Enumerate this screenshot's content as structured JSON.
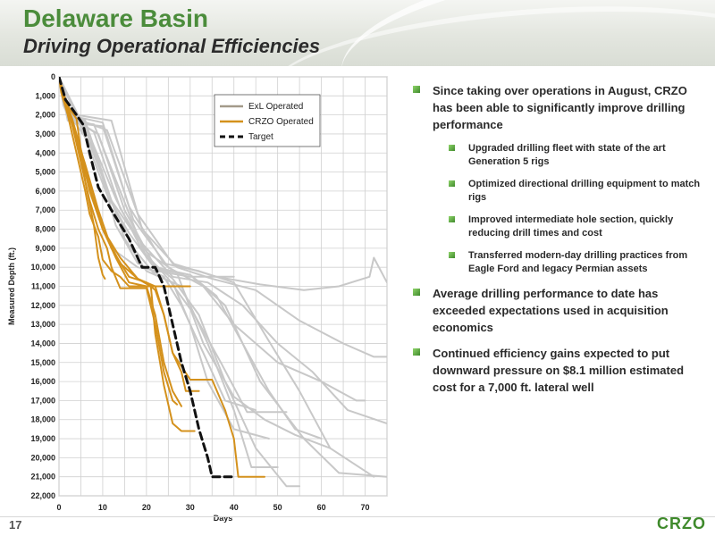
{
  "header": {
    "title": "Delaware Basin",
    "subtitle": "Driving Operational Efficiencies"
  },
  "bullets": [
    {
      "text": "Since taking over operations in August, CRZO has been able to significantly improve drilling performance",
      "level": 1
    },
    {
      "text": "Upgraded drilling fleet with state of the art Generation 5 rigs",
      "level": 2
    },
    {
      "text": "Optimized directional drilling equipment to match rigs",
      "level": 2
    },
    {
      "text": "Improved intermediate hole section, quickly reducing drill times and cost",
      "level": 2
    },
    {
      "text": "Transferred modern-day drilling practices from Eagle Ford and legacy Permian assets",
      "level": 2
    },
    {
      "text": "Average drilling performance to date has exceeded expectations used in acquisition economics",
      "level": 1
    },
    {
      "text": "Continued efficiency gains expected to put downward pressure on $8.1 million estimated cost for a 7,000 ft. lateral well",
      "level": 1
    }
  ],
  "footer": {
    "page_number": "17",
    "logo": "CRZO"
  },
  "chart_data": {
    "type": "line",
    "xlabel": "Days",
    "ylabel": "Measured Depth (ft.)",
    "xlim": [
      0,
      75
    ],
    "ylim": [
      0,
      22000
    ],
    "y_inverted": true,
    "grid": true,
    "legend_position": "top-right",
    "x_ticks": [
      0,
      10,
      20,
      30,
      40,
      50,
      60,
      70
    ],
    "y_ticks": [
      0,
      1000,
      2000,
      3000,
      4000,
      5000,
      6000,
      7000,
      8000,
      9000,
      10000,
      11000,
      12000,
      13000,
      14000,
      15000,
      16000,
      17000,
      18000,
      19000,
      20000,
      21000,
      22000
    ],
    "y_tick_labels": [
      "0",
      "1,000",
      "2,000",
      "3,000",
      "4,000",
      "5,000",
      "6,000",
      "7,000",
      "8,000",
      "9,000",
      "10,000",
      "11,000",
      "12,000",
      "13,000",
      "14,000",
      "15,000",
      "16,000",
      "17,000",
      "18,000",
      "19,000",
      "20,000",
      "21,000",
      "22,000"
    ],
    "colors": {
      "exl": "#c8c8c8",
      "exl_legend": "#a39a8a",
      "crzo": "#d4911c",
      "target": "#111111"
    },
    "legend": [
      {
        "name": "ExL Operated",
        "color": "#a39a8a",
        "style": "solid"
      },
      {
        "name": "CRZO Operated",
        "color": "#d4911c",
        "style": "solid"
      },
      {
        "name": "Target",
        "color": "#111111",
        "style": "dashed"
      }
    ],
    "series": [
      {
        "name": "Target",
        "group": "target",
        "x": [
          0,
          1.5,
          4,
          5.5,
          7,
          9,
          12,
          16,
          19,
          22,
          24,
          26,
          28,
          30,
          32,
          34,
          35,
          37,
          39,
          40
        ],
        "y": [
          0,
          1200,
          2000,
          2500,
          4000,
          5800,
          7000,
          8500,
          10000,
          10000,
          11000,
          13000,
          15000,
          16500,
          18500,
          20000,
          21000,
          21000,
          21000,
          21000
        ]
      },
      {
        "name": "CRZO 1",
        "group": "crzo",
        "x": [
          0,
          1,
          4,
          6,
          8,
          9,
          10,
          10.5
        ],
        "y": [
          0,
          1200,
          2200,
          5500,
          7800,
          9500,
          10400,
          10600
        ]
      },
      {
        "name": "CRZO 2",
        "group": "crzo",
        "x": [
          0,
          0.5,
          2,
          4,
          6,
          7,
          9,
          10,
          12,
          14,
          16,
          30
        ],
        "y": [
          0,
          800,
          2000,
          4000,
          6000,
          7200,
          8400,
          9600,
          10200,
          10500,
          11000,
          11000
        ]
      },
      {
        "name": "CRZO 3",
        "group": "crzo",
        "x": [
          0,
          1,
          3,
          5,
          7,
          9,
          11,
          12,
          14,
          20,
          22,
          24,
          26,
          27
        ],
        "y": [
          0,
          1000,
          2500,
          4500,
          6500,
          8000,
          9000,
          10000,
          11100,
          11100,
          13000,
          15500,
          17000,
          17200
        ]
      },
      {
        "name": "CRZO 4",
        "group": "crzo",
        "x": [
          0,
          1,
          3,
          5,
          8,
          10,
          13,
          16,
          20,
          22,
          24,
          26,
          28
        ],
        "y": [
          0,
          800,
          2500,
          4200,
          6200,
          8000,
          9500,
          10800,
          11000,
          12500,
          15000,
          16500,
          17300
        ]
      },
      {
        "name": "CRZO 5",
        "group": "crzo",
        "x": [
          0,
          1,
          3,
          5,
          7,
          10,
          14,
          18,
          21,
          22,
          24,
          26,
          28,
          31
        ],
        "y": [
          0,
          1000,
          2300,
          4000,
          6000,
          8000,
          9500,
          10600,
          11000,
          13500,
          16200,
          18200,
          18600,
          18600
        ]
      },
      {
        "name": "CRZO 6",
        "group": "crzo",
        "x": [
          0,
          1,
          3,
          6,
          9,
          12,
          16,
          20,
          22,
          24,
          26,
          28,
          29,
          32
        ],
        "y": [
          0,
          900,
          2400,
          4600,
          7000,
          9000,
          10500,
          10800,
          11200,
          12500,
          14500,
          15500,
          16500,
          16500
        ]
      },
      {
        "name": "CRZO 7",
        "group": "crzo",
        "x": [
          0,
          1,
          3,
          5,
          7,
          10,
          14,
          18,
          22,
          24,
          26,
          28,
          30,
          35,
          38,
          40,
          41,
          43,
          47
        ],
        "y": [
          0,
          1000,
          2200,
          3800,
          5800,
          8000,
          9800,
          10600,
          11000,
          12500,
          14500,
          15200,
          15900,
          15900,
          17500,
          19000,
          21000,
          21000,
          21000
        ]
      },
      {
        "name": "ExL 1",
        "group": "exl",
        "x": [
          0,
          1,
          3,
          5,
          8,
          12,
          18,
          25,
          30,
          40
        ],
        "y": [
          0,
          1500,
          2500,
          4000,
          6500,
          9000,
          10000,
          10300,
          10500,
          10500
        ]
      },
      {
        "name": "ExL 2",
        "group": "exl",
        "x": [
          0,
          2,
          5,
          9,
          13,
          18,
          24,
          28,
          33,
          38,
          45
        ],
        "y": [
          0,
          2000,
          2200,
          4500,
          7800,
          9800,
          10500,
          12000,
          14500,
          17000,
          17500
        ]
      },
      {
        "name": "ExL 3",
        "group": "exl",
        "x": [
          0,
          2,
          6,
          10,
          15,
          20,
          26,
          30,
          34,
          40,
          48
        ],
        "y": [
          0,
          1800,
          2300,
          5200,
          8500,
          10200,
          10800,
          13000,
          16000,
          18500,
          19000
        ]
      },
      {
        "name": "ExL 4",
        "group": "exl",
        "x": [
          0,
          3,
          7,
          12,
          17,
          22,
          28,
          34,
          40,
          44,
          50
        ],
        "y": [
          0,
          2200,
          3500,
          6500,
          9000,
          10400,
          11000,
          14000,
          17500,
          20500,
          20500
        ]
      },
      {
        "name": "ExL 5",
        "group": "exl",
        "x": [
          0,
          2,
          8,
          14,
          20,
          26,
          32,
          38,
          45,
          52,
          55
        ],
        "y": [
          0,
          2300,
          2500,
          6000,
          9500,
          10600,
          12500,
          16000,
          19500,
          21500,
          21500
        ]
      },
      {
        "name": "ExL 6",
        "group": "exl",
        "x": [
          0,
          3,
          9,
          15,
          22,
          30,
          36,
          42,
          48,
          54,
          60
        ],
        "y": [
          0,
          2200,
          3000,
          7000,
          10000,
          10400,
          11500,
          14000,
          16500,
          18500,
          19000
        ]
      },
      {
        "name": "ExL 7",
        "group": "exl",
        "x": [
          0,
          4,
          10,
          16,
          24,
          32,
          40,
          47,
          55,
          62,
          72
        ],
        "y": [
          0,
          2100,
          2400,
          6800,
          9800,
          10200,
          10800,
          13500,
          16500,
          19500,
          21000
        ]
      },
      {
        "name": "ExL 8",
        "group": "exl",
        "x": [
          0,
          2,
          7,
          12,
          18,
          26,
          34,
          42,
          50,
          58,
          66,
          75
        ],
        "y": [
          0,
          1500,
          3000,
          6500,
          8500,
          10500,
          10800,
          12000,
          14000,
          15500,
          17500,
          18200
        ]
      },
      {
        "name": "ExL 9",
        "group": "exl",
        "x": [
          0,
          3,
          10,
          17,
          25,
          33,
          40,
          50,
          60,
          68,
          70
        ],
        "y": [
          0,
          2400,
          2600,
          7500,
          10000,
          11000,
          13000,
          15000,
          16000,
          17000,
          17000
        ]
      },
      {
        "name": "ExL 10",
        "group": "exl",
        "x": [
          0,
          4,
          12,
          19,
          27,
          35,
          45,
          55,
          65,
          72,
          75
        ],
        "y": [
          0,
          2000,
          2300,
          8000,
          10000,
          10600,
          11200,
          12800,
          14000,
          14700,
          14700
        ]
      },
      {
        "name": "ExL 11",
        "group": "exl",
        "x": [
          0,
          2,
          6,
          11,
          16,
          22,
          30,
          38,
          46,
          56,
          64,
          75
        ],
        "y": [
          0,
          1000,
          3200,
          6200,
          8200,
          10100,
          10400,
          12000,
          16000,
          19000,
          20800,
          21000
        ]
      },
      {
        "name": "ExL 12",
        "group": "exl",
        "x": [
          0,
          5,
          11,
          18,
          26,
          36,
          46,
          56,
          64,
          71,
          72,
          75
        ],
        "y": [
          0,
          2300,
          2800,
          7200,
          9800,
          10500,
          10900,
          11200,
          11000,
          10500,
          9500,
          10800
        ]
      },
      {
        "name": "ExL 13",
        "group": "exl",
        "x": [
          0,
          3,
          8,
          14,
          20,
          27,
          33,
          40,
          47,
          54,
          62
        ],
        "y": [
          0,
          2100,
          2900,
          6900,
          9200,
          10300,
          14000,
          16800,
          18000,
          18800,
          19500
        ]
      },
      {
        "name": "ExL 14",
        "group": "exl",
        "x": [
          0,
          2,
          7,
          13,
          19,
          25,
          31,
          37,
          43,
          52
        ],
        "y": [
          0,
          1700,
          3100,
          6400,
          9100,
          10600,
          12500,
          15000,
          17600,
          17600
        ]
      }
    ]
  }
}
